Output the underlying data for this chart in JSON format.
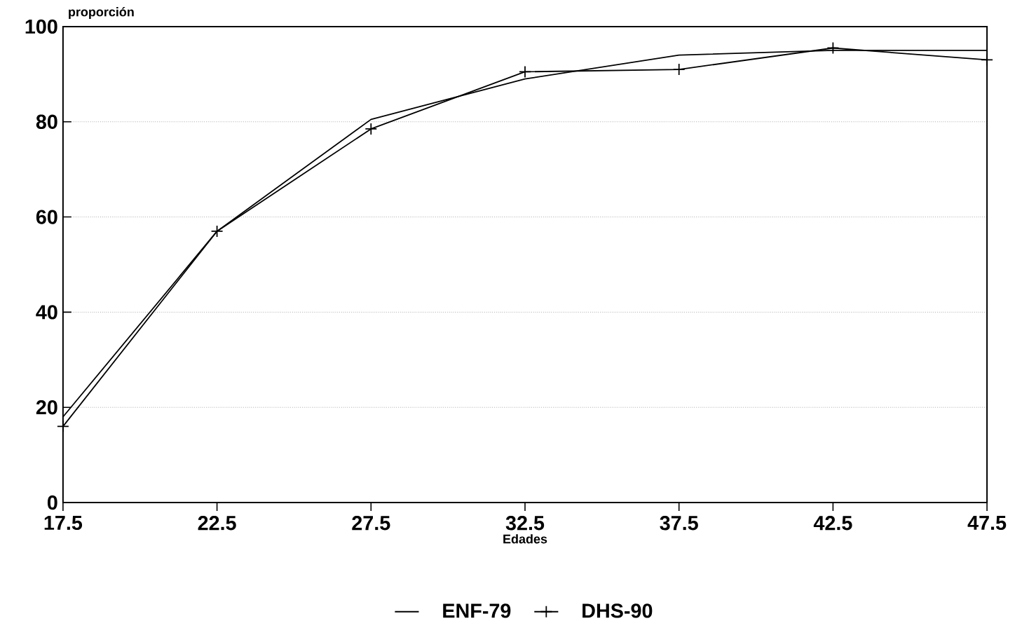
{
  "chart_data": {
    "type": "line",
    "xlabel": "Edades",
    "ylabel": "proporción",
    "x": [
      17.5,
      22.5,
      27.5,
      32.5,
      37.5,
      42.5,
      47.5
    ],
    "series": [
      {
        "name": "ENF-79",
        "color": "#000000",
        "marker": "none",
        "values": [
          18,
          57,
          80.5,
          89,
          94,
          95,
          95
        ]
      },
      {
        "name": "DHS-90",
        "color": "#000000",
        "marker": "cross",
        "values": [
          16,
          57,
          78.5,
          90.5,
          91,
          95.5,
          93
        ]
      }
    ],
    "xlim": [
      17.5,
      47.5
    ],
    "xticks": [
      17.5,
      22.5,
      27.5,
      32.5,
      37.5,
      42.5,
      47.5
    ],
    "ylim": [
      0,
      100
    ],
    "yticks": [
      0,
      20,
      40,
      60,
      80,
      100
    ],
    "grid": "y",
    "legend": "bottom",
    "line_style": "solid"
  }
}
